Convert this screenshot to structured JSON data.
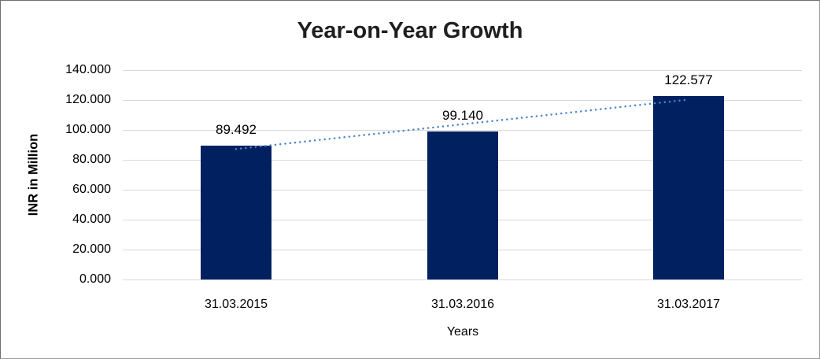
{
  "chart_data": {
    "type": "bar",
    "title": "Year-on-Year Growth",
    "categories": [
      "31.03.2015",
      "31.03.2016",
      "31.03.2017"
    ],
    "values": [
      89.492,
      99.14,
      122.577
    ],
    "value_labels": [
      "89.492",
      "99.140",
      "122.577"
    ],
    "xlabel": "Years",
    "ylabel": "INR in Million",
    "ylim": [
      0,
      140
    ],
    "y_tick_step": 20,
    "y_tick_labels": [
      "0.000",
      "20.000",
      "40.000",
      "60.000",
      "80.000",
      "100.000",
      "120.000",
      "140.000"
    ],
    "grid": true,
    "legend": false,
    "trendline": {
      "type": "linear",
      "style": "dotted"
    },
    "colors": {
      "bar": "#002060",
      "trendline": "#4a86c8",
      "gridline": "#d9d9d9",
      "title_text": "#1f1f1f",
      "axis_text": "#000000",
      "background": "#ffffff",
      "border": "#9c9c9c"
    }
  }
}
